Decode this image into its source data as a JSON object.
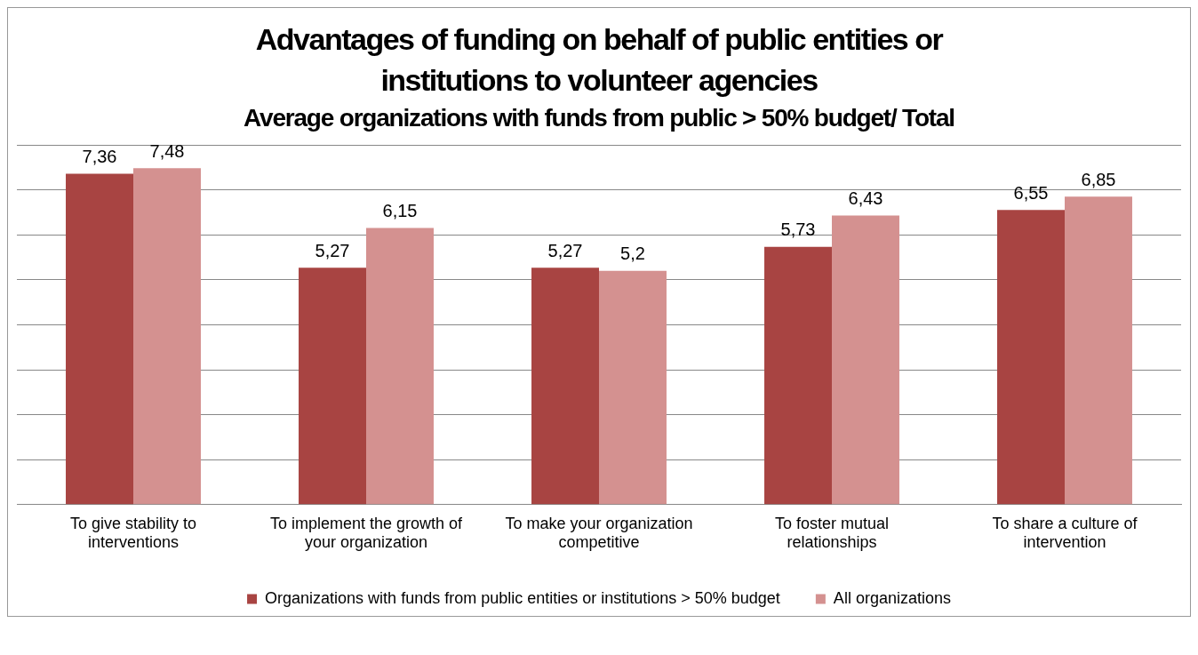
{
  "chart_data": {
    "type": "bar",
    "title": "Advantages of funding on behalf of public entities or institutions to volunteer agencies",
    "subtitle": "Average organizations with funds from public > 50% budget/ Total",
    "categories": [
      "To give stability to interventions",
      "To implement the growth of your organization",
      "To make your organization competitive",
      "To foster mutual relationships",
      "To share a culture of intervention"
    ],
    "series": [
      {
        "name": "Organizations with funds from public entities or institutions > 50% budget",
        "color": "#a84442",
        "values": [
          7.36,
          5.27,
          5.27,
          5.73,
          6.55
        ],
        "value_labels": [
          "7,36",
          "5,27",
          "5,27",
          "5,73",
          "6,55"
        ]
      },
      {
        "name": "All organizations",
        "color": "#d49190",
        "values": [
          7.48,
          6.15,
          5.2,
          6.43,
          6.85
        ],
        "value_labels": [
          "7,48",
          "6,15",
          "5,2",
          "6,43",
          "6,85"
        ]
      }
    ],
    "tick_labels": "x",
    "grid": "y",
    "legend": "bottom"
  }
}
